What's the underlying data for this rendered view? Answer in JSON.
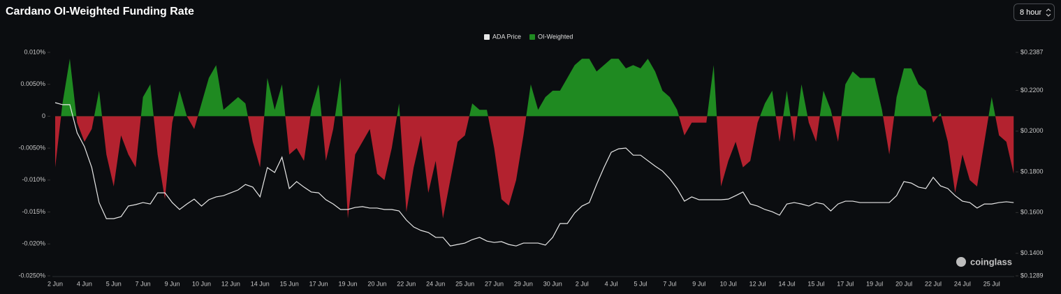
{
  "chart_data": {
    "type": "area",
    "title": "Cardano OI-Weighted Funding Rate",
    "categories": [
      "2 Jun",
      null,
      null,
      null,
      "4 Jun",
      null,
      null,
      null,
      "5 Jun",
      null,
      null,
      null,
      "7 Jun",
      null,
      null,
      null,
      "9 Jun",
      null,
      null,
      null,
      "10 Jun",
      null,
      null,
      null,
      "12 Jun",
      null,
      null,
      null,
      "14 Jun",
      null,
      null,
      null,
      "15 Jun",
      null,
      null,
      null,
      "17 Jun",
      null,
      null,
      null,
      "19 Jun",
      null,
      null,
      null,
      "20 Jun",
      null,
      null,
      null,
      "22 Jun",
      null,
      null,
      null,
      "24 Jun",
      null,
      null,
      null,
      "25 Jun",
      null,
      null,
      null,
      "27 Jun",
      null,
      null,
      null,
      "29 Jun",
      null,
      null,
      null,
      "30 Jun",
      null,
      null,
      null,
      "2 Jul",
      null,
      null,
      null,
      "4 Jul",
      null,
      null,
      null,
      "5 Jul",
      null,
      null,
      null,
      "7 Jul",
      null,
      null,
      null,
      "9 Jul",
      null,
      null,
      null,
      "10 Jul",
      null,
      null,
      null,
      "12 Jul",
      null,
      null,
      null,
      "14 Jul",
      null,
      null,
      null,
      "15 Jul",
      null,
      null,
      null,
      "17 Jul",
      null,
      null,
      null,
      "19 Jul",
      null,
      null,
      null,
      "20 Jul",
      null,
      null,
      null,
      "22 Jul",
      null,
      null,
      null,
      "24 Jul",
      null,
      null,
      null,
      "25 Jul",
      null,
      null,
      null
    ],
    "series": [
      {
        "name": "ADA Price",
        "type": "line",
        "axis": "y2",
        "color": "#e8e8e8",
        "values": [
          0.214,
          0.213,
          0.213,
          0.1992,
          0.1924,
          0.1821,
          0.1649,
          0.157,
          0.157,
          0.158,
          0.1632,
          0.1639,
          0.1649,
          0.1642,
          0.1697,
          0.1697,
          0.1649,
          0.1615,
          0.1642,
          0.1666,
          0.1632,
          0.1663,
          0.1677,
          0.1683,
          0.1697,
          0.1711,
          0.1738,
          0.1725,
          0.1677,
          0.1821,
          0.1797,
          0.1872,
          0.1718,
          0.1752,
          0.1725,
          0.1701,
          0.1697,
          0.1663,
          0.1642,
          0.1615,
          0.1615,
          0.1625,
          0.1629,
          0.1622,
          0.1622,
          0.1615,
          0.1615,
          0.1608,
          0.1563,
          0.1529,
          0.1512,
          0.1502,
          0.1478,
          0.1478,
          0.1436,
          0.1443,
          0.145,
          0.1467,
          0.1478,
          0.146,
          0.1453,
          0.1457,
          0.1443,
          0.1436,
          0.145,
          0.145,
          0.145,
          0.144,
          0.1478,
          0.1546,
          0.1546,
          0.1598,
          0.1632,
          0.1649,
          0.1738,
          0.1821,
          0.1896,
          0.1913,
          0.1917,
          0.1882,
          0.1882,
          0.1855,
          0.1828,
          0.1804,
          0.1766,
          0.1718,
          0.1656,
          0.1677,
          0.1663,
          0.1663,
          0.1663,
          0.1663,
          0.1666,
          0.1683,
          0.1701,
          0.1642,
          0.1632,
          0.1615,
          0.1604,
          0.1587,
          0.1642,
          0.1649,
          0.1642,
          0.1632,
          0.1649,
          0.1642,
          0.1608,
          0.1642,
          0.1656,
          0.1656,
          0.1649,
          0.1649,
          0.1649,
          0.1649,
          0.1649,
          0.1683,
          0.1752,
          0.1745,
          0.1725,
          0.1718,
          0.1773,
          0.1731,
          0.1718,
          0.1683,
          0.1656,
          0.1649,
          0.1622,
          0.1642,
          0.1642,
          0.1649,
          0.1653,
          0.1649
        ]
      },
      {
        "name": "OI-Weighted",
        "type": "area",
        "color": "#1f8a21",
        "negative_color": "#b3222f",
        "values": [
          -0.008,
          0.002,
          0.009,
          -0.001,
          -0.004,
          -0.002,
          0.004,
          -0.006,
          -0.011,
          -0.003,
          -0.006,
          -0.008,
          0.003,
          0.005,
          -0.006,
          -0.013,
          -0.001,
          0.004,
          0,
          -0.002,
          0.002,
          0.006,
          0.008,
          0.001,
          0.002,
          0.003,
          0.002,
          -0.004,
          -0.008,
          0.006,
          0.001,
          0.005,
          -0.006,
          -0.005,
          -0.007,
          0.001,
          0.005,
          -0.007,
          -0.002,
          0.006,
          -0.016,
          -0.006,
          -0.004,
          -0.002,
          -0.009,
          -0.01,
          -0.005,
          0.002,
          -0.015,
          -0.008,
          -0.003,
          -0.012,
          -0.007,
          -0.016,
          -0.01,
          -0.004,
          -0.003,
          0.002,
          0.001,
          0.001,
          -0.005,
          -0.013,
          -0.014,
          -0.01,
          -0.003,
          0.005,
          0.001,
          0.003,
          0.004,
          0.004,
          0.006,
          0.008,
          0.009,
          0.009,
          0.007,
          0.008,
          0.009,
          0.009,
          0.0075,
          0.008,
          0.0075,
          0.009,
          0.007,
          0.004,
          0.003,
          0.001,
          -0.003,
          -0.001,
          -0.001,
          -0.001,
          0.008,
          -0.011,
          -0.007,
          -0.004,
          -0.008,
          -0.007,
          -0.001,
          0.002,
          0.004,
          -0.004,
          0.004,
          -0.004,
          0.005,
          -0.001,
          -0.004,
          0.004,
          0.001,
          -0.004,
          0.005,
          0.007,
          0.006,
          0.006,
          0.006,
          0.001,
          -0.006,
          0.003,
          0.0075,
          0.0075,
          0.005,
          0.004,
          -0.001,
          0.0005,
          -0.004,
          -0.012,
          -0.006,
          -0.01,
          -0.011,
          -0.004,
          0.003,
          -0.003,
          -0.004,
          -0.009
        ]
      }
    ],
    "ylim": [
      -0.025,
      0.01
    ],
    "yticks": [
      {
        "value": 0.01,
        "label": "0.010%"
      },
      {
        "value": 0.005,
        "label": "0.0050%"
      },
      0,
      {
        "value": -0.005,
        "label": "-0.0050%"
      },
      {
        "value": -0.01,
        "label": "-0.010%"
      },
      {
        "value": -0.015,
        "label": "-0.015%"
      },
      {
        "value": -0.02,
        "label": "-0.020%"
      },
      {
        "value": -0.025,
        "label": "-0.0250%"
      }
    ],
    "y2lim": [
      0.1289,
      0.2387
    ],
    "y2ticks": [
      {
        "value": 0.2387,
        "label": "$0.2387"
      },
      {
        "value": 0.22,
        "label": "$0.2200"
      },
      {
        "value": 0.2,
        "label": "$0.2000"
      },
      {
        "value": 0.18,
        "label": "$0.1800"
      },
      {
        "value": 0.16,
        "label": "$0.1600"
      },
      {
        "value": 0.14,
        "label": "$0.1400"
      },
      {
        "value": 0.1289,
        "label": "$0.1289"
      }
    ],
    "grid": false,
    "legend": "top"
  },
  "interval_button": "8 hour",
  "watermark": "coinglass"
}
